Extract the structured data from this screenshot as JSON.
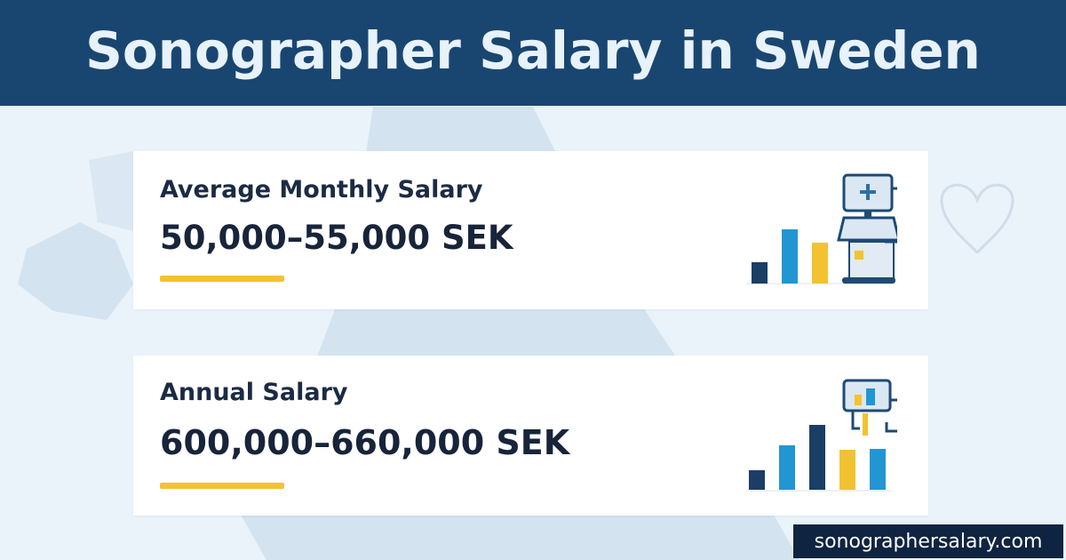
{
  "header": {
    "title": "Sonographer Salary in Sweden"
  },
  "cards": [
    {
      "label": "Average Monthly Salary",
      "value": "50,000–55,000 SEK",
      "icon": "ultrasound-machine-icon"
    },
    {
      "label": "Annual Salary",
      "value": "600,000–660,000 SEK",
      "icon": "ultrasound-monitor-icon"
    }
  ],
  "footer": {
    "site": "sonographersalary.com"
  },
  "colors": {
    "header": "#194670",
    "accent_yellow": "#f3c230",
    "bar_navy": "#1a3e66",
    "bar_blue": "#2196d3",
    "footer": "#0f2440"
  }
}
